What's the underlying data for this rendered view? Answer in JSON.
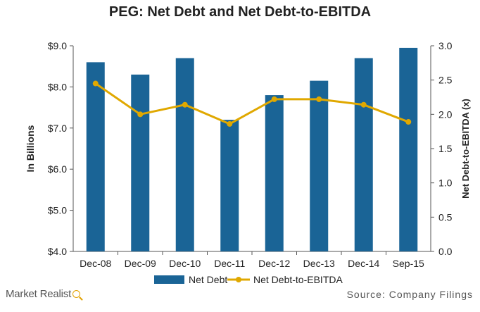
{
  "chart_data": {
    "type": "bar",
    "title": "PEG: Net Debt and Net Debt-to-EBITDA",
    "categories": [
      "Dec-08",
      "Dec-09",
      "Dec-10",
      "Dec-11",
      "Dec-12",
      "Dec-13",
      "Dec-14",
      "Sep-15"
    ],
    "series": [
      {
        "name": "Net Debt",
        "type": "bar",
        "axis": "left",
        "values": [
          8.6,
          8.3,
          8.7,
          7.2,
          7.8,
          8.15,
          8.7,
          8.95
        ],
        "color": "#1a6496"
      },
      {
        "name": "Net Debt-to-EBITDA",
        "type": "line",
        "axis": "right",
        "values": [
          2.45,
          2.0,
          2.14,
          1.86,
          2.22,
          2.22,
          2.14,
          1.89
        ],
        "color": "#e0a800"
      }
    ],
    "ylabel": "In Billions",
    "y2label": "Net Debt-to-EBITDA (x)",
    "ylim": [
      4.0,
      9.0
    ],
    "y2lim": [
      0.0,
      3.0
    ],
    "yticks": [
      "$4.0",
      "$5.0",
      "$6.0",
      "$7.0",
      "$8.0",
      "$9.0"
    ],
    "y2ticks": [
      "0.0",
      "0.5",
      "1.0",
      "1.5",
      "2.0",
      "2.5",
      "3.0"
    ],
    "grid": false,
    "legend_position": "bottom-center"
  },
  "branding": {
    "name": "Market Realist",
    "icon": "magnifier-icon"
  },
  "source_note": "Source: Company Filings"
}
